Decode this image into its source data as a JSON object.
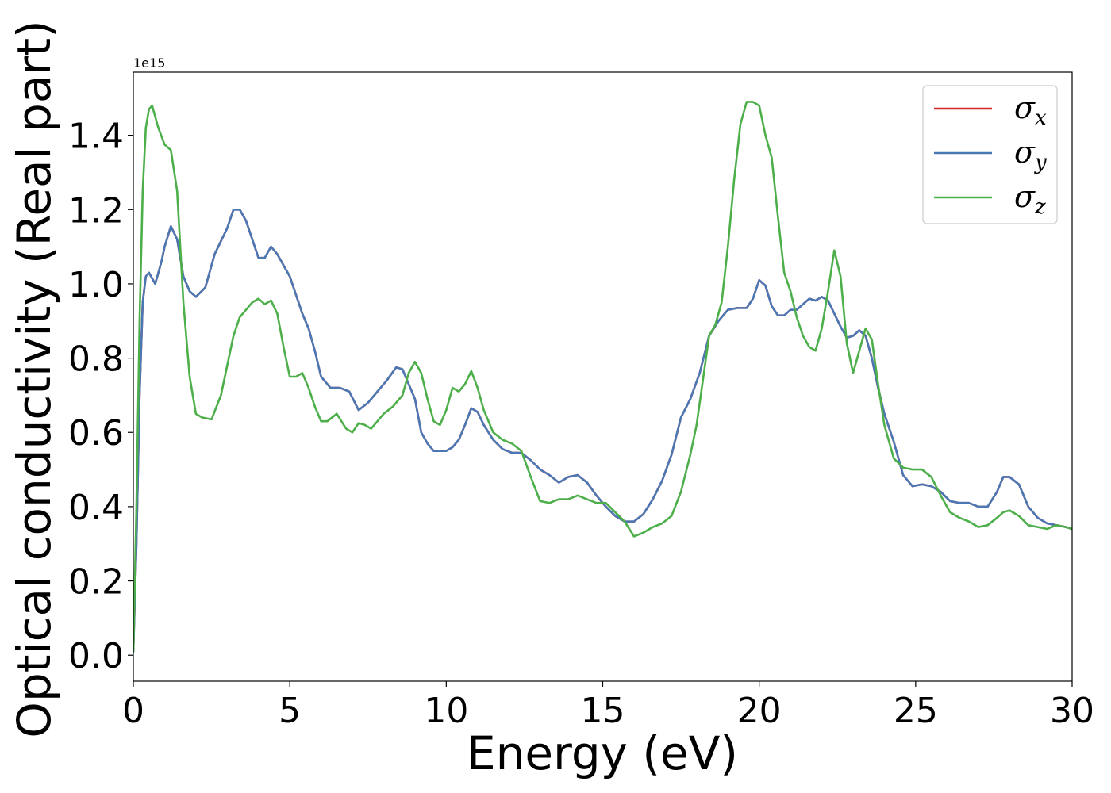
{
  "chart_data": {
    "type": "line",
    "xlabel": "Energy (eV)",
    "ylabel": "Optical conductivity (Real part)",
    "y_offset_label": "1e15",
    "xlim": [
      0,
      30
    ],
    "ylim": [
      -0.07,
      1.57
    ],
    "xticks": [
      0,
      5,
      10,
      15,
      20,
      25,
      30
    ],
    "yticks": [
      0.0,
      0.2,
      0.4,
      0.6,
      0.8,
      1.0,
      1.2,
      1.4
    ],
    "xtick_labels": [
      "0",
      "5",
      "10",
      "15",
      "20",
      "25",
      "30"
    ],
    "ytick_labels": [
      "0.0",
      "0.2",
      "0.4",
      "0.6",
      "0.8",
      "1.0",
      "1.2",
      "1.4"
    ],
    "grid": false,
    "legend_position": "top-right",
    "series": [
      {
        "name": "σx",
        "symbol": "σ",
        "subscript": "x",
        "color": "#d62728",
        "x": [
          0,
          0.1,
          0.2,
          0.3,
          0.4,
          0.5,
          0.7,
          0.9,
          1.0,
          1.2,
          1.4,
          1.6,
          1.8,
          2.0,
          2.3,
          2.6,
          3.0,
          3.2,
          3.4,
          3.6,
          3.8,
          4.0,
          4.2,
          4.4,
          4.6,
          4.8,
          5.0,
          5.2,
          5.4,
          5.6,
          5.8,
          6.0,
          6.3,
          6.6,
          6.9,
          7.2,
          7.5,
          7.8,
          8.1,
          8.4,
          8.6,
          8.8,
          9.0,
          9.2,
          9.4,
          9.6,
          9.8,
          10.0,
          10.2,
          10.4,
          10.6,
          10.8,
          11.0,
          11.2,
          11.5,
          11.8,
          12.1,
          12.4,
          12.7,
          13.0,
          13.3,
          13.6,
          13.9,
          14.2,
          14.5,
          14.8,
          15.1,
          15.4,
          15.7,
          16.0,
          16.3,
          16.6,
          16.9,
          17.2,
          17.5,
          17.8,
          18.1,
          18.4,
          18.7,
          19.0,
          19.3,
          19.6,
          19.8,
          20.0,
          20.2,
          20.4,
          20.6,
          20.8,
          21.0,
          21.2,
          21.4,
          21.6,
          21.8,
          22.0,
          22.2,
          22.4,
          22.6,
          22.8,
          23.0,
          23.2,
          23.4,
          23.6,
          23.8,
          24.0,
          24.3,
          24.6,
          24.9,
          25.2,
          25.5,
          25.8,
          26.1,
          26.4,
          26.7,
          27.0,
          27.3,
          27.6,
          27.8,
          28.0,
          28.3,
          28.6,
          28.9,
          29.2,
          29.5,
          29.8,
          30.0
        ],
        "y": [
          0.01,
          0.3,
          0.7,
          0.95,
          1.02,
          1.03,
          1.0,
          1.06,
          1.1,
          1.155,
          1.12,
          1.02,
          0.98,
          0.965,
          0.99,
          1.08,
          1.15,
          1.2,
          1.2,
          1.17,
          1.12,
          1.07,
          1.07,
          1.1,
          1.08,
          1.05,
          1.02,
          0.97,
          0.92,
          0.88,
          0.82,
          0.75,
          0.72,
          0.72,
          0.71,
          0.66,
          0.68,
          0.71,
          0.74,
          0.775,
          0.77,
          0.73,
          0.69,
          0.6,
          0.57,
          0.55,
          0.55,
          0.55,
          0.56,
          0.58,
          0.62,
          0.665,
          0.655,
          0.62,
          0.58,
          0.555,
          0.545,
          0.545,
          0.525,
          0.5,
          0.485,
          0.465,
          0.48,
          0.485,
          0.465,
          0.43,
          0.4,
          0.375,
          0.36,
          0.36,
          0.38,
          0.42,
          0.47,
          0.54,
          0.64,
          0.69,
          0.76,
          0.86,
          0.9,
          0.93,
          0.935,
          0.935,
          0.96,
          1.01,
          0.995,
          0.94,
          0.915,
          0.915,
          0.93,
          0.93,
          0.945,
          0.96,
          0.955,
          0.965,
          0.955,
          0.92,
          0.885,
          0.855,
          0.86,
          0.875,
          0.86,
          0.8,
          0.72,
          0.65,
          0.575,
          0.485,
          0.455,
          0.46,
          0.455,
          0.44,
          0.415,
          0.41,
          0.41,
          0.4,
          0.4,
          0.44,
          0.48,
          0.48,
          0.46,
          0.4,
          0.37,
          0.355,
          0.35,
          0.345,
          0.34
        ]
      },
      {
        "name": "σy",
        "symbol": "σ",
        "subscript": "y",
        "color": "#4a78b4",
        "x": [
          0,
          0.1,
          0.2,
          0.3,
          0.4,
          0.5,
          0.7,
          0.9,
          1.0,
          1.2,
          1.4,
          1.6,
          1.8,
          2.0,
          2.3,
          2.6,
          3.0,
          3.2,
          3.4,
          3.6,
          3.8,
          4.0,
          4.2,
          4.4,
          4.6,
          4.8,
          5.0,
          5.2,
          5.4,
          5.6,
          5.8,
          6.0,
          6.3,
          6.6,
          6.9,
          7.2,
          7.5,
          7.8,
          8.1,
          8.4,
          8.6,
          8.8,
          9.0,
          9.2,
          9.4,
          9.6,
          9.8,
          10.0,
          10.2,
          10.4,
          10.6,
          10.8,
          11.0,
          11.2,
          11.5,
          11.8,
          12.1,
          12.4,
          12.7,
          13.0,
          13.3,
          13.6,
          13.9,
          14.2,
          14.5,
          14.8,
          15.1,
          15.4,
          15.7,
          16.0,
          16.3,
          16.6,
          16.9,
          17.2,
          17.5,
          17.8,
          18.1,
          18.4,
          18.7,
          19.0,
          19.3,
          19.6,
          19.8,
          20.0,
          20.2,
          20.4,
          20.6,
          20.8,
          21.0,
          21.2,
          21.4,
          21.6,
          21.8,
          22.0,
          22.2,
          22.4,
          22.6,
          22.8,
          23.0,
          23.2,
          23.4,
          23.6,
          23.8,
          24.0,
          24.3,
          24.6,
          24.9,
          25.2,
          25.5,
          25.8,
          26.1,
          26.4,
          26.7,
          27.0,
          27.3,
          27.6,
          27.8,
          28.0,
          28.3,
          28.6,
          28.9,
          29.2,
          29.5,
          29.8,
          30.0
        ],
        "y": [
          0.01,
          0.3,
          0.7,
          0.95,
          1.02,
          1.03,
          1.0,
          1.06,
          1.1,
          1.155,
          1.12,
          1.02,
          0.98,
          0.965,
          0.99,
          1.08,
          1.15,
          1.2,
          1.2,
          1.17,
          1.12,
          1.07,
          1.07,
          1.1,
          1.08,
          1.05,
          1.02,
          0.97,
          0.92,
          0.88,
          0.82,
          0.75,
          0.72,
          0.72,
          0.71,
          0.66,
          0.68,
          0.71,
          0.74,
          0.775,
          0.77,
          0.73,
          0.69,
          0.6,
          0.57,
          0.55,
          0.55,
          0.55,
          0.56,
          0.58,
          0.62,
          0.665,
          0.655,
          0.62,
          0.58,
          0.555,
          0.545,
          0.545,
          0.525,
          0.5,
          0.485,
          0.465,
          0.48,
          0.485,
          0.465,
          0.43,
          0.4,
          0.375,
          0.36,
          0.36,
          0.38,
          0.42,
          0.47,
          0.54,
          0.64,
          0.69,
          0.76,
          0.86,
          0.9,
          0.93,
          0.935,
          0.935,
          0.96,
          1.01,
          0.995,
          0.94,
          0.915,
          0.915,
          0.93,
          0.93,
          0.945,
          0.96,
          0.955,
          0.965,
          0.955,
          0.92,
          0.885,
          0.855,
          0.86,
          0.875,
          0.86,
          0.8,
          0.72,
          0.65,
          0.575,
          0.485,
          0.455,
          0.46,
          0.455,
          0.44,
          0.415,
          0.41,
          0.41,
          0.4,
          0.4,
          0.44,
          0.48,
          0.48,
          0.46,
          0.4,
          0.37,
          0.355,
          0.35,
          0.345,
          0.34
        ]
      },
      {
        "name": "σz",
        "symbol": "σ",
        "subscript": "z",
        "color": "#4daf4a",
        "x": [
          0,
          0.1,
          0.2,
          0.3,
          0.4,
          0.5,
          0.6,
          0.8,
          1.0,
          1.2,
          1.4,
          1.6,
          1.8,
          2.0,
          2.2,
          2.5,
          2.8,
          3.0,
          3.2,
          3.4,
          3.6,
          3.8,
          4.0,
          4.2,
          4.4,
          4.6,
          4.8,
          5.0,
          5.2,
          5.4,
          5.6,
          5.8,
          6.0,
          6.2,
          6.5,
          6.8,
          7.0,
          7.2,
          7.4,
          7.6,
          7.8,
          8.0,
          8.3,
          8.6,
          8.8,
          9.0,
          9.2,
          9.4,
          9.6,
          9.8,
          10.0,
          10.2,
          10.4,
          10.6,
          10.8,
          11.0,
          11.2,
          11.5,
          11.8,
          12.1,
          12.4,
          12.7,
          13.0,
          13.3,
          13.6,
          13.9,
          14.2,
          14.5,
          14.8,
          15.1,
          15.4,
          15.7,
          16.0,
          16.3,
          16.6,
          16.9,
          17.2,
          17.5,
          17.8,
          18.0,
          18.2,
          18.4,
          18.6,
          18.8,
          19.0,
          19.2,
          19.4,
          19.6,
          19.8,
          20.0,
          20.2,
          20.4,
          20.6,
          20.8,
          21.0,
          21.2,
          21.4,
          21.6,
          21.8,
          22.0,
          22.2,
          22.4,
          22.6,
          22.8,
          23.0,
          23.2,
          23.4,
          23.6,
          23.8,
          24.0,
          24.3,
          24.6,
          24.9,
          25.2,
          25.5,
          25.8,
          26.1,
          26.4,
          26.7,
          27.0,
          27.3,
          27.6,
          27.8,
          28.0,
          28.3,
          28.6,
          28.9,
          29.2,
          29.5,
          29.8,
          30.0
        ],
        "y": [
          0.01,
          0.4,
          0.9,
          1.25,
          1.42,
          1.47,
          1.48,
          1.42,
          1.375,
          1.36,
          1.25,
          0.95,
          0.75,
          0.65,
          0.64,
          0.635,
          0.7,
          0.78,
          0.86,
          0.91,
          0.93,
          0.95,
          0.96,
          0.945,
          0.955,
          0.92,
          0.83,
          0.75,
          0.75,
          0.76,
          0.72,
          0.67,
          0.63,
          0.63,
          0.65,
          0.61,
          0.6,
          0.625,
          0.62,
          0.61,
          0.63,
          0.65,
          0.67,
          0.7,
          0.76,
          0.79,
          0.76,
          0.69,
          0.63,
          0.62,
          0.66,
          0.72,
          0.71,
          0.73,
          0.765,
          0.72,
          0.66,
          0.6,
          0.58,
          0.57,
          0.55,
          0.48,
          0.415,
          0.41,
          0.42,
          0.42,
          0.43,
          0.42,
          0.41,
          0.41,
          0.385,
          0.36,
          0.32,
          0.33,
          0.345,
          0.355,
          0.375,
          0.44,
          0.54,
          0.62,
          0.74,
          0.86,
          0.89,
          0.95,
          1.1,
          1.28,
          1.43,
          1.49,
          1.49,
          1.48,
          1.4,
          1.34,
          1.18,
          1.03,
          0.98,
          0.91,
          0.86,
          0.83,
          0.82,
          0.88,
          0.98,
          1.09,
          1.02,
          0.84,
          0.76,
          0.82,
          0.88,
          0.85,
          0.73,
          0.62,
          0.53,
          0.505,
          0.5,
          0.5,
          0.48,
          0.43,
          0.385,
          0.37,
          0.36,
          0.345,
          0.35,
          0.37,
          0.385,
          0.39,
          0.375,
          0.35,
          0.345,
          0.34,
          0.35,
          0.345,
          0.34
        ]
      }
    ]
  }
}
